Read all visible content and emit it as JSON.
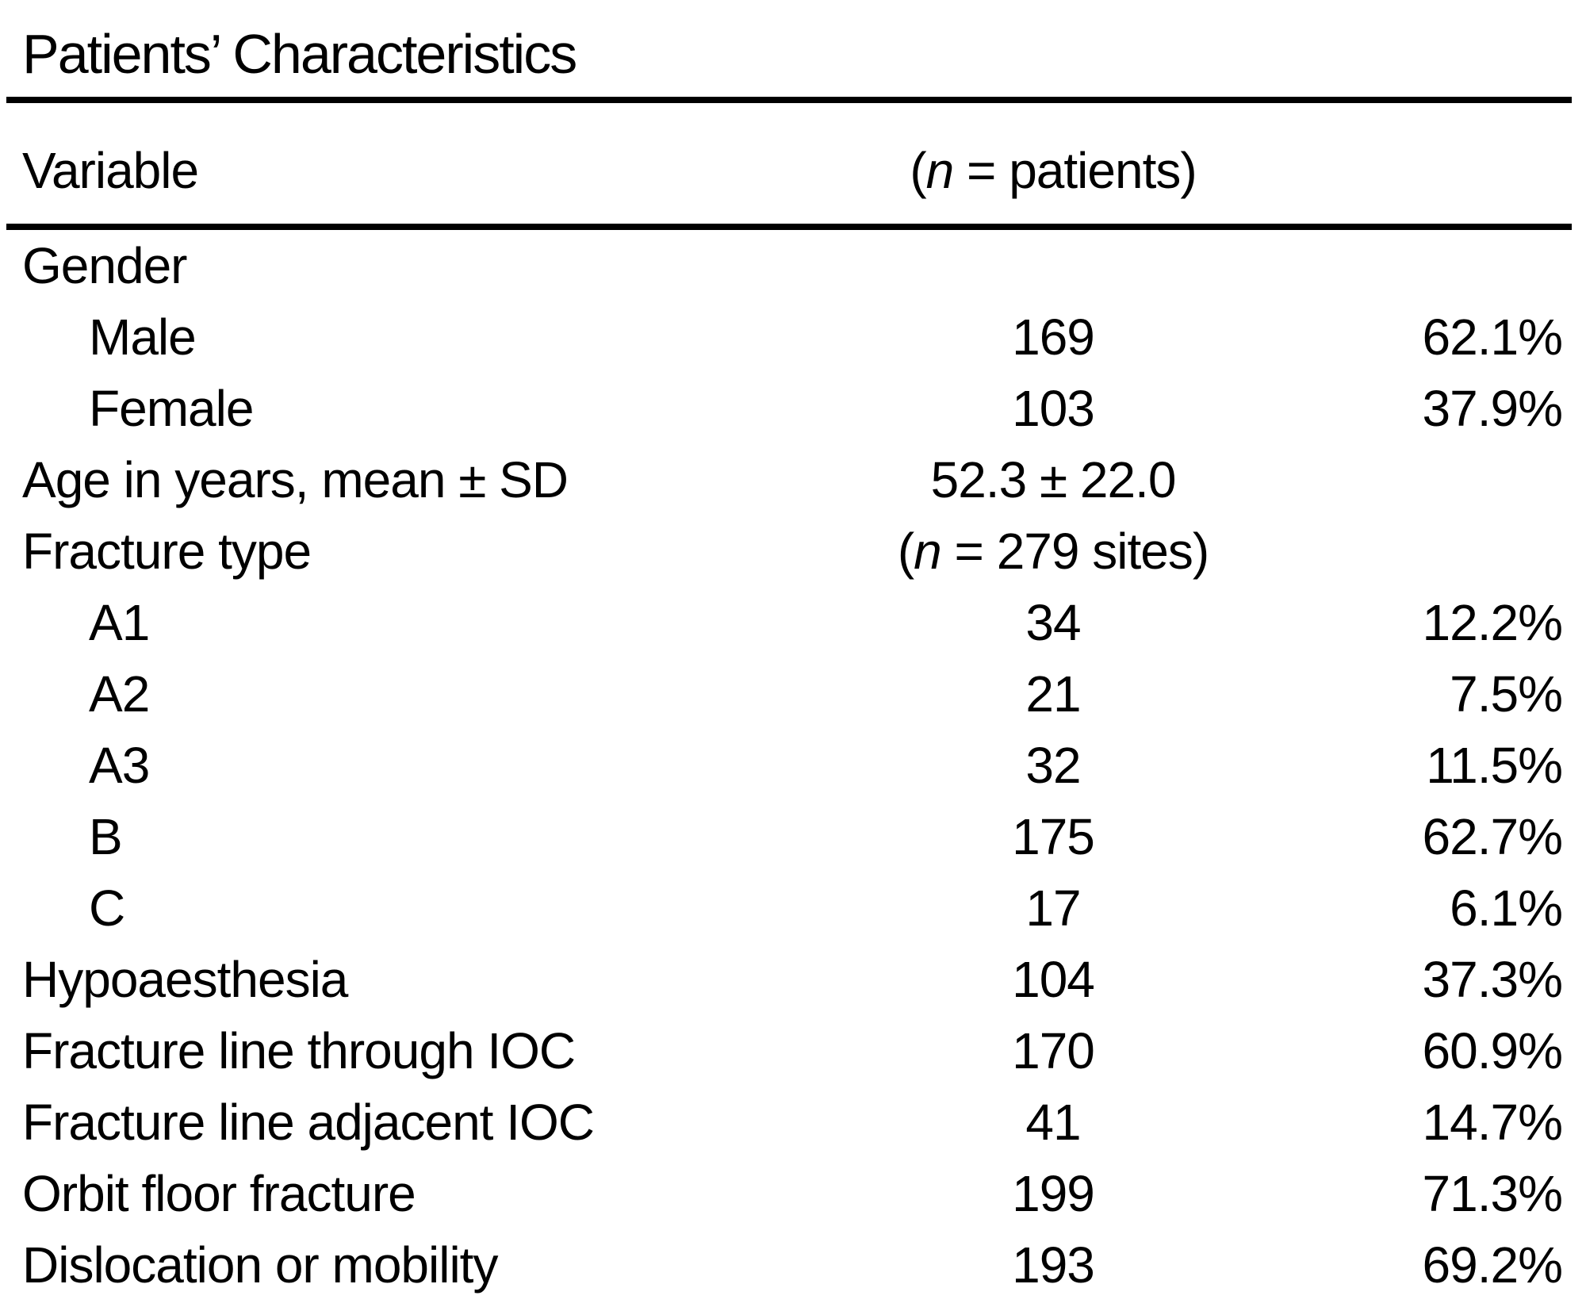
{
  "table": {
    "title": "Patients’ Characteristics",
    "header": {
      "variable": "Variable",
      "n_pre": "(",
      "n_italic": "n",
      "n_post": " = patients)"
    },
    "rows": [
      {
        "label": "Gender",
        "n_pre": "",
        "n_italic": "",
        "n_post": "",
        "pct": ""
      },
      {
        "label": "Male",
        "n_pre": "169",
        "n_italic": "",
        "n_post": "",
        "pct": "62.1%"
      },
      {
        "label": "Female",
        "n_pre": "103",
        "n_italic": "",
        "n_post": "",
        "pct": "37.9%"
      },
      {
        "label": "Age in years, mean ± SD",
        "n_pre": "52.3 ± 22.0",
        "n_italic": "",
        "n_post": "",
        "pct": ""
      },
      {
        "label": "Fracture type",
        "n_pre": "(",
        "n_italic": "n",
        "n_post": " = 279 sites)",
        "pct": ""
      },
      {
        "label": "A1",
        "n_pre": "34",
        "n_italic": "",
        "n_post": "",
        "pct": "12.2%"
      },
      {
        "label": "A2",
        "n_pre": "21",
        "n_italic": "",
        "n_post": "",
        "pct": "7.5%"
      },
      {
        "label": "A3",
        "n_pre": "32",
        "n_italic": "",
        "n_post": "",
        "pct": "11.5%"
      },
      {
        "label": "B",
        "n_pre": "175",
        "n_italic": "",
        "n_post": "",
        "pct": "62.7%"
      },
      {
        "label": "C",
        "n_pre": "17",
        "n_italic": "",
        "n_post": "",
        "pct": "6.1%"
      },
      {
        "label": "Hypoaesthesia",
        "n_pre": "104",
        "n_italic": "",
        "n_post": "",
        "pct": "37.3%"
      },
      {
        "label": "Fracture line through IOC",
        "n_pre": "170",
        "n_italic": "",
        "n_post": "",
        "pct": "60.9%"
      },
      {
        "label": "Fracture line adjacent IOC",
        "n_pre": "41",
        "n_italic": "",
        "n_post": "",
        "pct": "14.7%"
      },
      {
        "label": "Orbit floor fracture",
        "n_pre": "199",
        "n_italic": "",
        "n_post": "",
        "pct": "71.3%"
      },
      {
        "label": "Dislocation or mobility",
        "n_pre": "193",
        "n_italic": "",
        "n_post": "",
        "pct": "69.2%"
      }
    ]
  }
}
